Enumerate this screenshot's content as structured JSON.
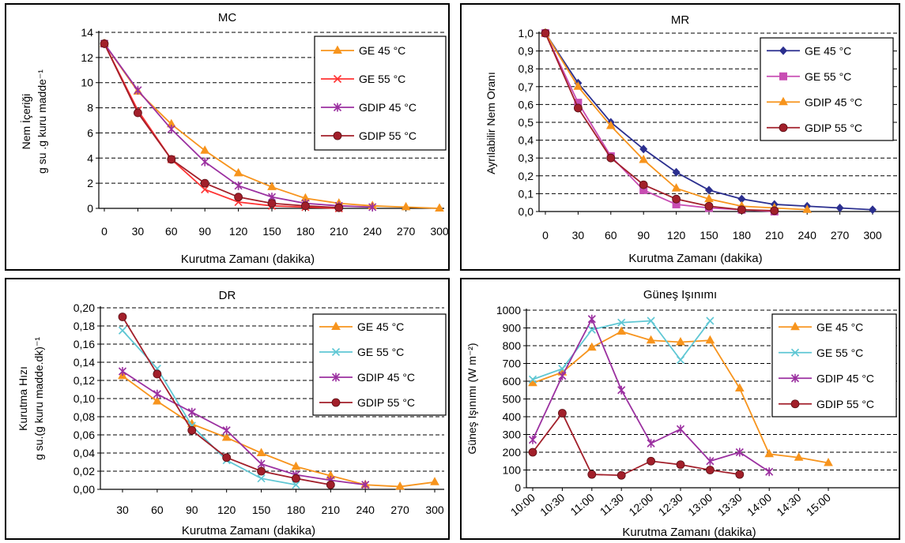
{
  "chart_data": [
    {
      "type": "line",
      "title": "MC",
      "xlabel": "Kurutma Zamanı (dakika)",
      "ylabel_line1": "Nem İçeriği",
      "ylabel_line2": "g su .g kuru madde⁻¹",
      "xlim": [
        0,
        300
      ],
      "ylim": [
        0,
        14
      ],
      "x_ticks": [
        0,
        30,
        60,
        90,
        120,
        150,
        180,
        210,
        240,
        270,
        300
      ],
      "x_tick_labels": [
        "0",
        "30",
        "60",
        "90",
        "120",
        "150",
        "180",
        "210",
        "240",
        "270",
        "300"
      ],
      "y_ticks": [
        0,
        2,
        4,
        6,
        8,
        10,
        12,
        14
      ],
      "y_tick_labels": [
        "0",
        "2",
        "4",
        "6",
        "8",
        "10",
        "12",
        "14"
      ],
      "grid": "horizontal dashed",
      "legend_position": "top-right",
      "series": [
        {
          "name": "GE 45 °C",
          "color": "#f7941d",
          "marker": "triangle",
          "x": [
            0,
            30,
            60,
            90,
            120,
            150,
            180,
            210,
            240,
            270,
            300
          ],
          "y": [
            13.1,
            9.3,
            6.7,
            4.6,
            2.8,
            1.7,
            0.8,
            0.4,
            0.2,
            0.1,
            0.0
          ]
        },
        {
          "name": "GE 55 °C",
          "color": "#ff3333",
          "marker": "x",
          "x": [
            0,
            30,
            60,
            90,
            120,
            150,
            180,
            210
          ],
          "y": [
            13.1,
            7.8,
            3.9,
            1.5,
            0.5,
            0.2,
            0.1,
            0.0
          ]
        },
        {
          "name": "GDIP 45 °C",
          "color": "#9b30a0",
          "marker": "asterisk",
          "x": [
            0,
            30,
            60,
            90,
            120,
            150,
            180,
            210,
            240
          ],
          "y": [
            13.1,
            9.4,
            6.3,
            3.7,
            1.8,
            0.9,
            0.4,
            0.2,
            0.1
          ]
        },
        {
          "name": "GDIP 55 °C",
          "color": "#a21f2a",
          "marker": "circle",
          "x": [
            0,
            30,
            60,
            90,
            120,
            150,
            180,
            210
          ],
          "y": [
            13.1,
            7.6,
            3.9,
            2.0,
            0.9,
            0.4,
            0.2,
            0.05
          ]
        }
      ]
    },
    {
      "type": "line",
      "title": "MR",
      "xlabel": "Kurutma Zamanı (dakika)",
      "ylabel_line1": "Ayrılabilir Nem Oranı",
      "ylabel_line2": "",
      "xlim": [
        0,
        300
      ],
      "ylim": [
        0,
        1
      ],
      "x_ticks": [
        0,
        30,
        60,
        90,
        120,
        150,
        180,
        210,
        240,
        270,
        300
      ],
      "x_tick_labels": [
        "0",
        "30",
        "60",
        "90",
        "120",
        "150",
        "180",
        "210",
        "240",
        "270",
        "300"
      ],
      "y_ticks": [
        0,
        0.1,
        0.2,
        0.3,
        0.4,
        0.5,
        0.6,
        0.7,
        0.8,
        0.9,
        1.0
      ],
      "y_tick_labels": [
        "0,0",
        "0,1",
        "0,2",
        "0,3",
        "0,4",
        "0,5",
        "0,6",
        "0,7",
        "0,8",
        "0,9",
        "1,0"
      ],
      "grid": "horizontal dashed",
      "legend_position": "top-right",
      "series": [
        {
          "name": "GE 45 °C",
          "color": "#2b2f8f",
          "marker": "diamond",
          "x": [
            0,
            30,
            60,
            90,
            120,
            150,
            180,
            210,
            240,
            270,
            300
          ],
          "y": [
            1.0,
            0.72,
            0.5,
            0.35,
            0.22,
            0.12,
            0.07,
            0.04,
            0.03,
            0.02,
            0.01
          ]
        },
        {
          "name": "GE 55 °C",
          "color": "#c84db3",
          "marker": "square",
          "x": [
            0,
            30,
            60,
            90,
            120,
            150,
            180,
            210
          ],
          "y": [
            1.0,
            0.61,
            0.31,
            0.12,
            0.04,
            0.02,
            0.01,
            0.0
          ]
        },
        {
          "name": "GDIP 45 °C",
          "color": "#f7941d",
          "marker": "triangle",
          "x": [
            0,
            30,
            60,
            90,
            120,
            150,
            180,
            210,
            240
          ],
          "y": [
            1.0,
            0.7,
            0.48,
            0.29,
            0.13,
            0.07,
            0.03,
            0.02,
            0.01
          ]
        },
        {
          "name": "GDIP 55 °C",
          "color": "#a21f2a",
          "marker": "circle",
          "x": [
            0,
            30,
            60,
            90,
            120,
            150,
            180,
            210
          ],
          "y": [
            1.0,
            0.58,
            0.3,
            0.15,
            0.07,
            0.03,
            0.01,
            0.005
          ]
        }
      ]
    },
    {
      "type": "line",
      "title": "DR",
      "xlabel": "Kurutma Zamanı (dakika)",
      "ylabel_line1": "Kurutma Hızı",
      "ylabel_line2": "g su.(g kuru madde.dk)⁻¹",
      "xlim": [
        30,
        300
      ],
      "ylim": [
        0,
        0.2
      ],
      "x_ticks": [
        30,
        60,
        90,
        120,
        150,
        180,
        210,
        240,
        270,
        300
      ],
      "x_tick_labels": [
        "30",
        "60",
        "90",
        "120",
        "150",
        "180",
        "210",
        "240",
        "270",
        "300"
      ],
      "y_ticks": [
        0,
        0.02,
        0.04,
        0.06,
        0.08,
        0.1,
        0.12,
        0.14,
        0.16,
        0.18,
        0.2
      ],
      "y_tick_labels": [
        "0,00",
        "0,02",
        "0,04",
        "0,06",
        "0,08",
        "0,10",
        "0,12",
        "0,14",
        "0,16",
        "0,18",
        "0,20"
      ],
      "grid": "horizontal dashed",
      "legend_position": "top-right",
      "series": [
        {
          "name": "GE 45 °C",
          "color": "#f7941d",
          "marker": "triangle",
          "x": [
            30,
            60,
            90,
            120,
            150,
            180,
            210,
            240,
            270,
            300
          ],
          "y": [
            0.125,
            0.097,
            0.072,
            0.057,
            0.04,
            0.025,
            0.015,
            0.005,
            0.003,
            0.008
          ]
        },
        {
          "name": "GE 55 °C",
          "color": "#5fc7d4",
          "marker": "x",
          "x": [
            30,
            60,
            90,
            120,
            150,
            180
          ],
          "y": [
            0.175,
            0.133,
            0.07,
            0.032,
            0.012,
            0.005
          ]
        },
        {
          "name": "GDIP 45 °C",
          "color": "#9b30a0",
          "marker": "asterisk",
          "x": [
            30,
            60,
            90,
            120,
            150,
            180,
            210,
            240
          ],
          "y": [
            0.13,
            0.105,
            0.085,
            0.065,
            0.028,
            0.016,
            0.01,
            0.005
          ]
        },
        {
          "name": "GDIP 55 °C",
          "color": "#a21f2a",
          "marker": "circle",
          "x": [
            30,
            60,
            90,
            120,
            150,
            180,
            210
          ],
          "y": [
            0.19,
            0.127,
            0.065,
            0.035,
            0.02,
            0.012,
            0.005
          ]
        }
      ]
    },
    {
      "type": "line",
      "title": "Güneş Işınımı",
      "xlabel": "Kurutma Zamanı (dakika)",
      "ylabel_line1": "Güneş Işınımı (W m⁻²)",
      "ylabel_line2": "",
      "xlim": [
        0,
        10
      ],
      "ylim": [
        0,
        1000
      ],
      "x_ticks": [
        0,
        1,
        2,
        3,
        4,
        5,
        6,
        7,
        8,
        9,
        10
      ],
      "x_tick_labels": [
        "10:00",
        "10:30",
        "11:00",
        "11:30",
        "12:00",
        "12:30",
        "13:00",
        "13:30",
        "14:00",
        "14:30",
        "15:00"
      ],
      "y_ticks": [
        0,
        100,
        200,
        300,
        400,
        500,
        600,
        700,
        800,
        900,
        1000
      ],
      "y_tick_labels": [
        "0",
        "100",
        "200",
        "300",
        "400",
        "500",
        "600",
        "700",
        "800",
        "900",
        "1000"
      ],
      "grid": "horizontal dashed",
      "legend_position": "top-right",
      "series": [
        {
          "name": "GE 45 °C",
          "color": "#f7941d",
          "marker": "triangle",
          "x": [
            0,
            1,
            2,
            3,
            4,
            5,
            6,
            7,
            8,
            9,
            10
          ],
          "y": [
            590,
            650,
            790,
            880,
            830,
            820,
            830,
            560,
            190,
            170,
            140
          ]
        },
        {
          "name": "GE 55 °C",
          "color": "#5fc7d4",
          "marker": "x",
          "x": [
            0,
            1,
            2,
            3,
            4,
            5,
            6
          ],
          "y": [
            610,
            670,
            890,
            930,
            940,
            720,
            940
          ]
        },
        {
          "name": "GDIP 45 °C",
          "color": "#9b30a0",
          "marker": "asterisk",
          "x": [
            0,
            1,
            2,
            3,
            4,
            5,
            6,
            7,
            8
          ],
          "y": [
            270,
            630,
            950,
            550,
            250,
            330,
            150,
            200,
            90
          ]
        },
        {
          "name": "GDIP 55 °C",
          "color": "#a21f2a",
          "marker": "circle",
          "x": [
            0,
            1,
            2,
            3,
            4,
            5,
            6,
            7
          ],
          "y": [
            200,
            420,
            75,
            70,
            150,
            130,
            100,
            75
          ]
        }
      ]
    }
  ]
}
